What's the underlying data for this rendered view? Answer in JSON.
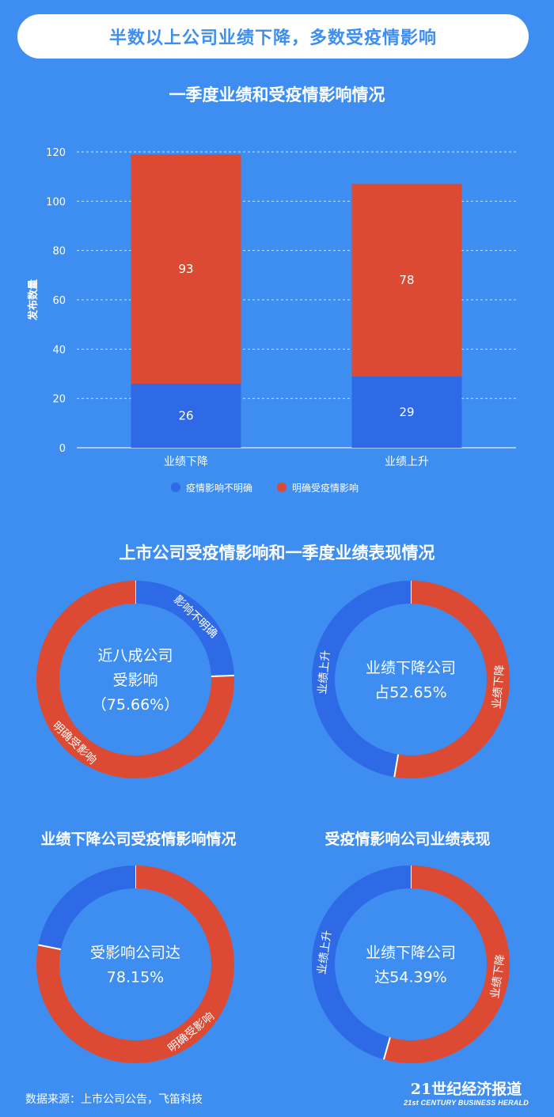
{
  "header": {
    "title": "半数以上公司业绩下降，多数受疫情影响"
  },
  "colors": {
    "background": "#3d8ef0",
    "blue": "#2f6ae6",
    "red": "#dd4a33"
  },
  "chart_data": [
    {
      "type": "bar",
      "stacked": true,
      "title": "一季度业绩和受疫情影响情况",
      "xlabel": "",
      "ylabel": "发布数量",
      "ylim": [
        0,
        120
      ],
      "yticks": [
        0,
        20,
        40,
        60,
        80,
        100,
        120
      ],
      "categories": [
        "业绩下降",
        "业绩上升"
      ],
      "series": [
        {
          "name": "疫情影响不明确",
          "color": "#2f6ae6",
          "values": [
            26,
            29
          ]
        },
        {
          "name": "明确受疫情影响",
          "color": "#dd4a33",
          "values": [
            93,
            78
          ]
        }
      ],
      "grid": true,
      "legend": "bottom"
    },
    {
      "type": "pie",
      "donut": true,
      "title": "上市公司受疫情影响和一季度业绩表现情况",
      "center_lines": [
        "近八成公司",
        "受影响",
        "（75.66%）"
      ],
      "slices": [
        {
          "label": "影响不明确",
          "value": 24.34,
          "color": "#2f6ae6"
        },
        {
          "label": "明确受影响",
          "value": 75.66,
          "color": "#dd4a33"
        }
      ]
    },
    {
      "type": "pie",
      "donut": true,
      "title": "",
      "center_lines": [
        "业绩下降公司",
        "占52.65%"
      ],
      "slices": [
        {
          "label": "业绩下降",
          "value": 52.65,
          "color": "#dd4a33"
        },
        {
          "label": "业绩上升",
          "value": 47.35,
          "color": "#2f6ae6"
        }
      ]
    },
    {
      "type": "pie",
      "donut": true,
      "title": "业绩下降公司受疫情影响情况",
      "center_lines": [
        "受影响公司达",
        "78.15%"
      ],
      "slices": [
        {
          "label": "明确受影响",
          "value": 78.15,
          "color": "#dd4a33",
          "show_label": true
        },
        {
          "label": "",
          "value": 21.85,
          "color": "#2f6ae6",
          "show_label": false
        }
      ]
    },
    {
      "type": "pie",
      "donut": true,
      "title": "受疫情影响公司业绩表现",
      "center_lines": [
        "业绩下降公司",
        "达54.39%"
      ],
      "slices": [
        {
          "label": "业绩下降",
          "value": 54.39,
          "color": "#dd4a33"
        },
        {
          "label": "业绩上升",
          "value": 45.61,
          "color": "#2f6ae6"
        }
      ]
    }
  ],
  "footer": {
    "source": "数据来源：上市公司公告，飞笛科技",
    "brand_cn": "21世纪经济报道",
    "brand_en": "21st CENTURY BUSINESS HERALD"
  }
}
